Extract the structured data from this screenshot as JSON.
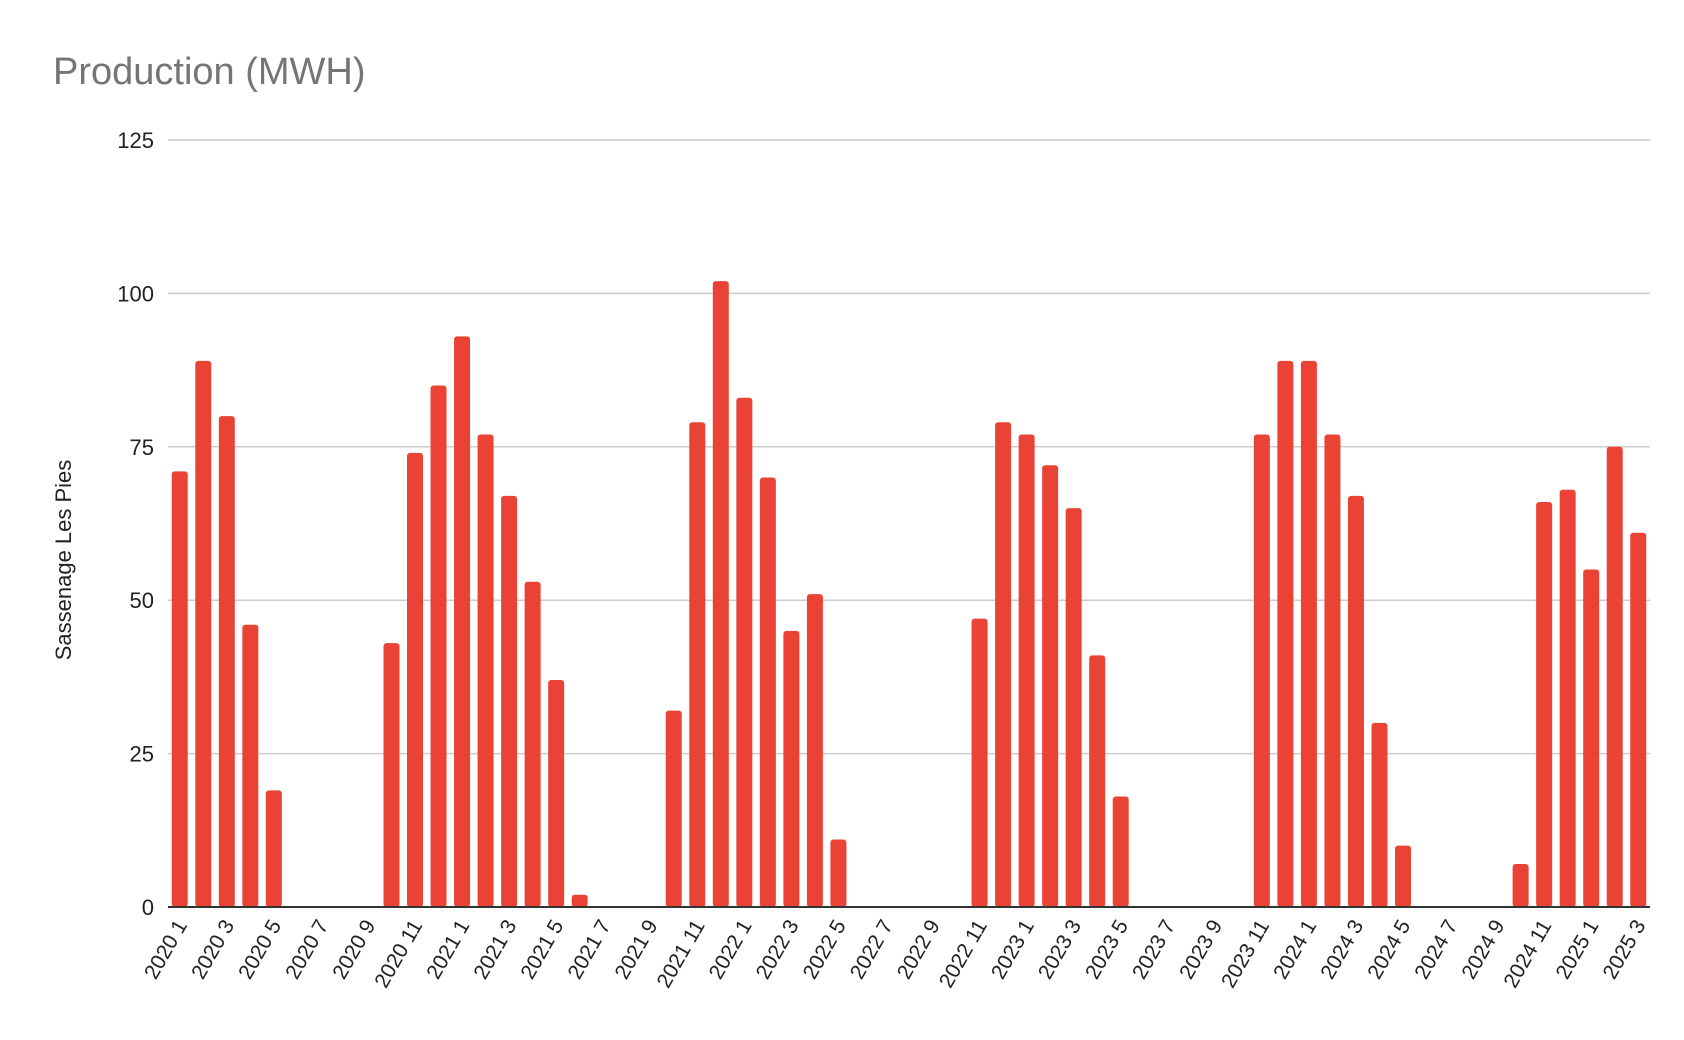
{
  "chart_data": {
    "type": "bar",
    "title": "Production (MWH)",
    "xlabel": "",
    "ylabel": "Sassenage Les Pies",
    "ylim": [
      0,
      125
    ],
    "yticks": [
      0,
      25,
      50,
      75,
      100,
      125
    ],
    "grid": true,
    "color": "#ea4335",
    "categories": [
      "2020 1",
      "2020 2",
      "2020 3",
      "2020 4",
      "2020 5",
      "2020 6",
      "2020 7",
      "2020 8",
      "2020 9",
      "2020 10",
      "2020 11",
      "2020 12",
      "2021 1",
      "2021 2",
      "2021 3",
      "2021 4",
      "2021 5",
      "2021 6",
      "2021 7",
      "2021 8",
      "2021 9",
      "2021 10",
      "2021 11",
      "2021 12",
      "2022 1",
      "2022 2",
      "2022 3",
      "2022 4",
      "2022 5",
      "2022 6",
      "2022 7",
      "2022 8",
      "2022 9",
      "2022 10",
      "2022 11",
      "2022 12",
      "2023 1",
      "2023 2",
      "2023 3",
      "2023 4",
      "2023 5",
      "2023 6",
      "2023 7",
      "2023 8",
      "2023 9",
      "2023 10",
      "2023 11",
      "2023 12",
      "2024 1",
      "2024 2",
      "2024 3",
      "2024 4",
      "2024 5",
      "2024 6",
      "2024 7",
      "2024 8",
      "2024 9",
      "2024 10",
      "2024 11",
      "2024 12",
      "2025 1",
      "2025 2",
      "2025 3"
    ],
    "values": [
      71,
      89,
      80,
      46,
      19,
      0,
      0,
      0,
      0,
      43,
      74,
      85,
      93,
      77,
      67,
      53,
      37,
      2,
      0,
      0,
      0,
      32,
      79,
      102,
      83,
      70,
      45,
      51,
      11,
      0,
      0,
      0,
      0,
      0,
      47,
      79,
      77,
      72,
      65,
      41,
      18,
      0,
      0,
      0,
      0,
      0,
      77,
      89,
      89,
      77,
      67,
      30,
      10,
      0,
      0,
      0,
      0,
      7,
      66,
      68,
      55,
      75,
      61
    ]
  }
}
